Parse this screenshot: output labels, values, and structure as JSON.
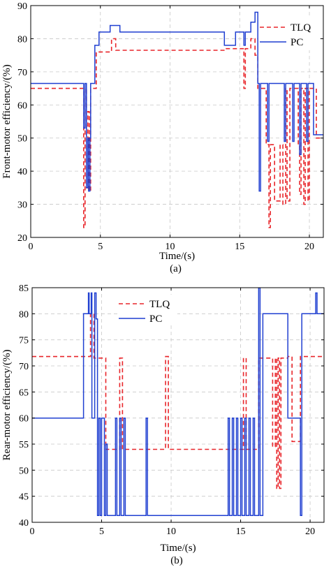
{
  "chart_data": [
    {
      "type": "line",
      "caption": "(a)",
      "xlabel": "Time/(s)",
      "ylabel": "Front-motor efficiency/(%)",
      "xlim": [
        0,
        21
      ],
      "ylim": [
        20,
        90
      ],
      "xticks": [
        0,
        5,
        10,
        15,
        20
      ],
      "yticks": [
        20,
        30,
        40,
        50,
        60,
        70,
        80,
        90
      ],
      "grid": true,
      "legend_position": "top-right",
      "series": [
        {
          "name": "TLQ",
          "color": "#e8252a",
          "dash": "dashed",
          "points": [
            [
              0,
              65
            ],
            [
              3.8,
              65
            ],
            [
              3.8,
              23
            ],
            [
              3.9,
              23
            ],
            [
              3.9,
              65
            ],
            [
              4.0,
              65
            ],
            [
              4.0,
              35
            ],
            [
              4.1,
              35
            ],
            [
              4.1,
              58
            ],
            [
              4.2,
              58
            ],
            [
              4.2,
              34
            ],
            [
              4.3,
              34
            ],
            [
              4.3,
              65
            ],
            [
              4.7,
              65
            ],
            [
              4.7,
              76
            ],
            [
              5.8,
              76
            ],
            [
              5.8,
              80
            ],
            [
              6.1,
              80
            ],
            [
              6.1,
              76.5
            ],
            [
              14.0,
              76.5
            ],
            [
              14.0,
              77
            ],
            [
              15.3,
              77
            ],
            [
              15.3,
              65
            ],
            [
              15.4,
              65
            ],
            [
              15.4,
              77
            ],
            [
              15.8,
              77
            ],
            [
              15.8,
              80
            ],
            [
              16.1,
              80
            ],
            [
              16.1,
              75
            ],
            [
              16.3,
              75
            ],
            [
              16.3,
              65
            ],
            [
              16.9,
              65
            ],
            [
              16.9,
              48
            ],
            [
              17.1,
              48
            ],
            [
              17.1,
              23
            ],
            [
              17.2,
              23
            ],
            [
              17.2,
              48
            ],
            [
              17.5,
              48
            ],
            [
              17.5,
              31
            ],
            [
              17.9,
              31
            ],
            [
              17.9,
              48
            ],
            [
              18.1,
              48
            ],
            [
              18.1,
              30
            ],
            [
              18.3,
              30
            ],
            [
              18.3,
              65
            ],
            [
              18.4,
              65
            ],
            [
              18.4,
              31
            ],
            [
              18.6,
              31
            ],
            [
              18.6,
              65
            ],
            [
              19.2,
              65
            ],
            [
              19.2,
              48
            ],
            [
              19.3,
              48
            ],
            [
              19.3,
              33
            ],
            [
              19.4,
              33
            ],
            [
              19.4,
              65
            ],
            [
              19.6,
              65
            ],
            [
              19.6,
              30
            ],
            [
              19.7,
              30
            ],
            [
              19.7,
              65
            ],
            [
              19.9,
              65
            ],
            [
              19.9,
              31
            ],
            [
              20.0,
              31
            ],
            [
              20.0,
              65
            ],
            [
              20.5,
              65
            ],
            [
              20.5,
              50
            ],
            [
              21,
              50
            ]
          ]
        },
        {
          "name": "PC",
          "color": "#1f3fd1",
          "dash": "solid",
          "points": [
            [
              0,
              66.5
            ],
            [
              3.8,
              66.5
            ],
            [
              3.8,
              53
            ],
            [
              3.9,
              53
            ],
            [
              3.9,
              66.5
            ],
            [
              4.0,
              66.5
            ],
            [
              4.0,
              35
            ],
            [
              4.1,
              35
            ],
            [
              4.1,
              50
            ],
            [
              4.15,
              50
            ],
            [
              4.15,
              34
            ],
            [
              4.25,
              34
            ],
            [
              4.25,
              50
            ],
            [
              4.3,
              50
            ],
            [
              4.3,
              66.5
            ],
            [
              4.6,
              66.5
            ],
            [
              4.6,
              78
            ],
            [
              4.9,
              78
            ],
            [
              4.9,
              82
            ],
            [
              5.7,
              82
            ],
            [
              5.7,
              84
            ],
            [
              6.4,
              84
            ],
            [
              6.4,
              82
            ],
            [
              13.9,
              82
            ],
            [
              13.9,
              78
            ],
            [
              14.7,
              78
            ],
            [
              14.7,
              82
            ],
            [
              15.3,
              82
            ],
            [
              15.3,
              78
            ],
            [
              15.4,
              78
            ],
            [
              15.4,
              82
            ],
            [
              15.8,
              82
            ],
            [
              15.8,
              85
            ],
            [
              16.1,
              85
            ],
            [
              16.1,
              88
            ],
            [
              16.3,
              88
            ],
            [
              16.3,
              66.5
            ],
            [
              16.4,
              66.5
            ],
            [
              16.4,
              34
            ],
            [
              16.5,
              34
            ],
            [
              16.5,
              66.5
            ],
            [
              17.0,
              66.5
            ],
            [
              17.0,
              49
            ],
            [
              17.1,
              49
            ],
            [
              17.1,
              66.5
            ],
            [
              18.2,
              66.5
            ],
            [
              18.2,
              49
            ],
            [
              18.3,
              49
            ],
            [
              18.3,
              66.5
            ],
            [
              18.8,
              66.5
            ],
            [
              18.8,
              49
            ],
            [
              18.9,
              49
            ],
            [
              18.9,
              66.5
            ],
            [
              19.3,
              66.5
            ],
            [
              19.3,
              45
            ],
            [
              19.4,
              45
            ],
            [
              19.4,
              66.5
            ],
            [
              19.8,
              66.5
            ],
            [
              19.8,
              49
            ],
            [
              19.9,
              49
            ],
            [
              19.9,
              66.5
            ],
            [
              20.3,
              66.5
            ],
            [
              20.3,
              51
            ],
            [
              21,
              51
            ]
          ]
        }
      ]
    },
    {
      "type": "line",
      "caption": "(b)",
      "xlabel": "Time/(s)",
      "ylabel": "Rear-motor efficiency/(%)",
      "xlim": [
        0,
        21
      ],
      "ylim": [
        40,
        85
      ],
      "xticks": [
        0,
        5,
        10,
        15,
        20
      ],
      "yticks": [
        40,
        45,
        50,
        55,
        60,
        65,
        70,
        75,
        80,
        85
      ],
      "grid": true,
      "legend_position": "top-center",
      "series": [
        {
          "name": "TLQ",
          "color": "#e8252a",
          "dash": "dashed",
          "points": [
            [
              0,
              71.8
            ],
            [
              4.2,
              71.8
            ],
            [
              4.2,
              80
            ],
            [
              4.45,
              80
            ],
            [
              4.45,
              71.5
            ],
            [
              5.3,
              71.5
            ],
            [
              5.3,
              54
            ],
            [
              6.3,
              54
            ],
            [
              6.3,
              71.5
            ],
            [
              6.5,
              71.5
            ],
            [
              6.5,
              54
            ],
            [
              9.6,
              54
            ],
            [
              9.6,
              71.8
            ],
            [
              9.8,
              71.8
            ],
            [
              9.8,
              54
            ],
            [
              15.2,
              54
            ],
            [
              15.2,
              71.5
            ],
            [
              15.4,
              71.5
            ],
            [
              15.4,
              54
            ],
            [
              16.3,
              54
            ],
            [
              16.3,
              71.5
            ],
            [
              17.3,
              71.5
            ],
            [
              17.3,
              54.5
            ],
            [
              17.5,
              54.5
            ],
            [
              17.5,
              71.5
            ],
            [
              17.6,
              71.5
            ],
            [
              17.6,
              46.5
            ],
            [
              17.7,
              46.5
            ],
            [
              17.7,
              71.5
            ],
            [
              17.8,
              71.5
            ],
            [
              17.8,
              46.5
            ],
            [
              17.9,
              46.5
            ],
            [
              17.9,
              71.5
            ],
            [
              18.4,
              71.5
            ],
            [
              18.4,
              71.8
            ],
            [
              18.7,
              71.8
            ],
            [
              18.7,
              55.5
            ],
            [
              19.3,
              55.5
            ],
            [
              19.3,
              71.8
            ],
            [
              21,
              71.8
            ]
          ]
        },
        {
          "name": "PC",
          "color": "#1f3fd1",
          "dash": "solid",
          "points": [
            [
              0,
              60
            ],
            [
              3.7,
              60
            ],
            [
              3.7,
              80
            ],
            [
              4.05,
              80
            ],
            [
              4.05,
              84
            ],
            [
              4.1,
              84
            ],
            [
              4.1,
              80
            ],
            [
              4.25,
              80
            ],
            [
              4.25,
              84
            ],
            [
              4.3,
              84
            ],
            [
              4.3,
              60
            ],
            [
              4.5,
              60
            ],
            [
              4.5,
              84
            ],
            [
              4.6,
              84
            ],
            [
              4.6,
              79
            ],
            [
              4.7,
              79
            ],
            [
              4.7,
              41.3
            ],
            [
              4.8,
              41.3
            ],
            [
              4.8,
              60
            ],
            [
              4.9,
              60
            ],
            [
              4.9,
              41.3
            ],
            [
              5.0,
              41.3
            ],
            [
              5.0,
              60
            ],
            [
              5.2,
              60
            ],
            [
              5.2,
              41.3
            ],
            [
              5.3,
              41.3
            ],
            [
              5.3,
              55
            ],
            [
              5.4,
              55
            ],
            [
              5.4,
              41.3
            ],
            [
              6.0,
              41.3
            ],
            [
              6.0,
              60
            ],
            [
              6.1,
              60
            ],
            [
              6.1,
              41.3
            ],
            [
              6.3,
              41.3
            ],
            [
              6.3,
              60
            ],
            [
              6.4,
              60
            ],
            [
              6.4,
              41.3
            ],
            [
              6.6,
              41.3
            ],
            [
              6.6,
              60
            ],
            [
              6.7,
              60
            ],
            [
              6.7,
              41.3
            ],
            [
              8.2,
              41.3
            ],
            [
              8.2,
              60
            ],
            [
              8.3,
              60
            ],
            [
              8.3,
              41.3
            ],
            [
              14.1,
              41.3
            ],
            [
              14.1,
              60
            ],
            [
              14.2,
              60
            ],
            [
              14.2,
              41.3
            ],
            [
              14.4,
              41.3
            ],
            [
              14.4,
              60
            ],
            [
              14.5,
              60
            ],
            [
              14.5,
              41.3
            ],
            [
              14.7,
              41.3
            ],
            [
              14.7,
              60
            ],
            [
              14.8,
              60
            ],
            [
              14.8,
              41.3
            ],
            [
              15.0,
              41.3
            ],
            [
              15.0,
              60
            ],
            [
              15.1,
              60
            ],
            [
              15.1,
              41.3
            ],
            [
              15.3,
              41.3
            ],
            [
              15.3,
              60
            ],
            [
              15.4,
              60
            ],
            [
              15.4,
              41.3
            ],
            [
              15.6,
              41.3
            ],
            [
              15.6,
              60
            ],
            [
              15.7,
              60
            ],
            [
              15.7,
              41.3
            ],
            [
              15.9,
              41.3
            ],
            [
              15.9,
              60
            ],
            [
              16.0,
              60
            ],
            [
              16.0,
              41.3
            ],
            [
              16.3,
              41.3
            ],
            [
              16.3,
              85
            ],
            [
              16.4,
              85
            ],
            [
              16.4,
              41.3
            ],
            [
              16.6,
              41.3
            ],
            [
              16.6,
              80
            ],
            [
              18.4,
              80
            ],
            [
              18.4,
              60
            ],
            [
              19.3,
              60
            ],
            [
              19.3,
              41.3
            ],
            [
              19.4,
              41.3
            ],
            [
              19.4,
              80
            ],
            [
              20.4,
              80
            ],
            [
              20.4,
              84
            ],
            [
              20.5,
              84
            ],
            [
              20.5,
              80
            ],
            [
              21,
              80
            ]
          ]
        }
      ]
    }
  ]
}
